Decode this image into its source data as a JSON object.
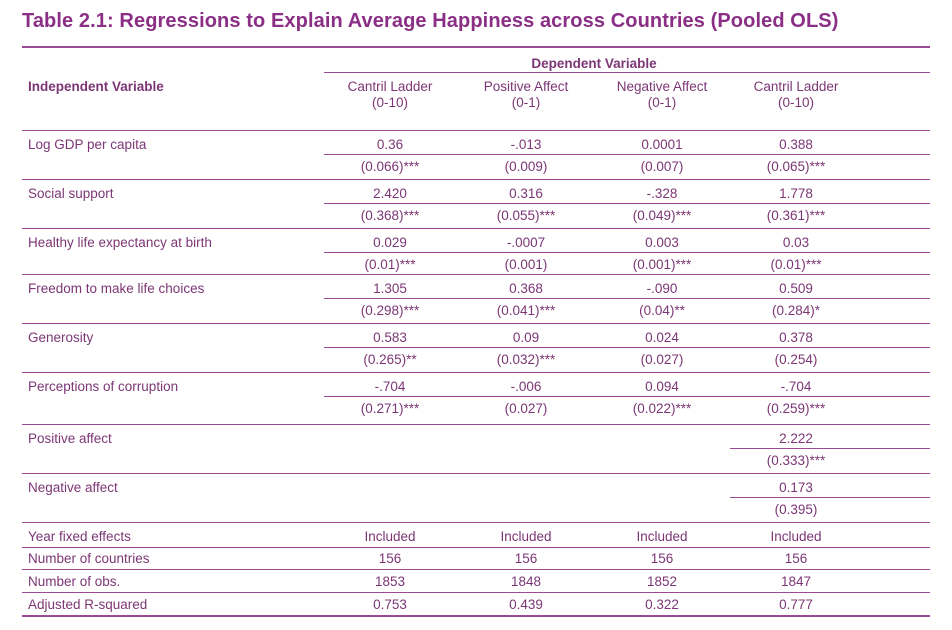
{
  "title": "Table 2.1: Regressions to Explain Average Happiness across Countries (Pooled OLS)",
  "header": {
    "dependent_variable": "Dependent Variable",
    "independent_variable": "Independent Variable",
    "columns": [
      {
        "name": "Cantril Ladder",
        "range": "(0-10)"
      },
      {
        "name": "Positive Affect",
        "range": "(0-1)"
      },
      {
        "name": "Negative Affect",
        "range": "(0-1)"
      },
      {
        "name": "Cantril Ladder",
        "range": "(0-10)"
      }
    ]
  },
  "rows": [
    {
      "label": "Log GDP per capita",
      "coef": [
        "0.36",
        "-.013",
        "0.0001",
        "0.388"
      ],
      "se": [
        "(0.066)***",
        "(0.009)",
        "(0.007)",
        "(0.065)***"
      ]
    },
    {
      "label": "Social support",
      "coef": [
        "2.420",
        "0.316",
        "-.328",
        "1.778"
      ],
      "se": [
        "(0.368)***",
        "(0.055)***",
        "(0.049)***",
        "(0.361)***"
      ]
    },
    {
      "label": "Healthy life expectancy at birth",
      "coef": [
        "0.029",
        "-.0007",
        "0.003",
        "0.03"
      ],
      "se": [
        "(0.01)***",
        "(0.001)",
        "(0.001)***",
        "(0.01)***"
      ]
    },
    {
      "label": "Freedom to make life choices",
      "coef": [
        "1.305",
        "0.368",
        "-.090",
        "0.509"
      ],
      "se": [
        "(0.298)***",
        "(0.041)***",
        "(0.04)**",
        "(0.284)*"
      ]
    },
    {
      "label": "Generosity",
      "coef": [
        "0.583",
        "0.09",
        "0.024",
        "0.378"
      ],
      "se": [
        "(0.265)**",
        "(0.032)***",
        "(0.027)",
        "(0.254)"
      ]
    },
    {
      "label": "Perceptions of corruption",
      "coef": [
        "-.704",
        "-.006",
        "0.094",
        "-.704"
      ],
      "se": [
        "(0.271)***",
        "(0.027)",
        "(0.022)***",
        "(0.259)***"
      ]
    },
    {
      "label": "Positive affect",
      "coef": [
        "",
        "",
        "",
        "2.222"
      ],
      "se": [
        "",
        "",
        "",
        "(0.333)***"
      ]
    },
    {
      "label": "Negative affect",
      "coef": [
        "",
        "",
        "",
        "0.173"
      ],
      "se": [
        "",
        "",
        "",
        "(0.395)"
      ]
    }
  ],
  "footer": [
    {
      "label": "Year fixed effects",
      "values": [
        "Included",
        "Included",
        "Included",
        "Included"
      ]
    },
    {
      "label": "Number of countries",
      "values": [
        "156",
        "156",
        "156",
        "156"
      ]
    },
    {
      "label": "Number of obs.",
      "values": [
        "1853",
        "1848",
        "1852",
        "1847"
      ]
    },
    {
      "label": "Adjusted R-squared",
      "values": [
        "0.753",
        "0.439",
        "0.322",
        "0.777"
      ]
    }
  ]
}
